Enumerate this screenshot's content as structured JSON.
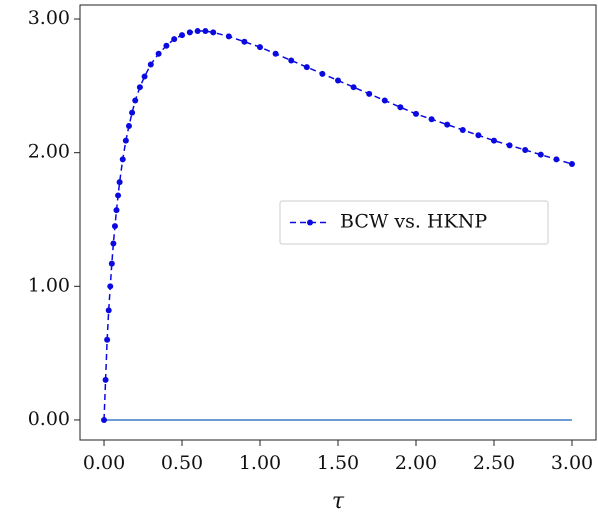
{
  "chart_data": {
    "type": "line",
    "xlabel": "τ",
    "x": [
      0,
      0.01,
      0.02,
      0.03,
      0.04,
      0.05,
      0.06,
      0.07,
      0.08,
      0.09,
      0.1,
      0.12,
      0.14,
      0.16,
      0.18,
      0.2,
      0.23,
      0.26,
      0.3,
      0.35,
      0.4,
      0.45,
      0.5,
      0.55,
      0.6,
      0.65,
      0.7,
      0.8,
      0.9,
      1.0,
      1.1,
      1.2,
      1.3,
      1.4,
      1.5,
      1.6,
      1.7,
      1.8,
      1.9,
      2.0,
      2.1,
      2.2,
      2.3,
      2.4,
      2.5,
      2.6,
      2.7,
      2.8,
      2.9,
      3.0
    ],
    "series": [
      {
        "name": "BCW vs. HKNP",
        "color": "#0a0ae0",
        "values": [
          0,
          0.3,
          0.6,
          0.82,
          1.0,
          1.17,
          1.32,
          1.45,
          1.57,
          1.68,
          1.78,
          1.95,
          2.09,
          2.2,
          2.3,
          2.39,
          2.49,
          2.57,
          2.66,
          2.74,
          2.8,
          2.85,
          2.88,
          2.9,
          2.91,
          2.91,
          2.9,
          2.87,
          2.83,
          2.79,
          2.74,
          2.69,
          2.64,
          2.59,
          2.54,
          2.49,
          2.44,
          2.39,
          2.34,
          2.29,
          2.25,
          2.21,
          2.17,
          2.13,
          2.09,
          2.055,
          2.02,
          1.985,
          1.95,
          1.915
        ]
      }
    ],
    "hline": {
      "y": 0,
      "xmin": 0,
      "xmax": 3,
      "color": "#3a7dc4"
    },
    "xlim": [
      -0.154,
      3.154
    ],
    "ylim": [
      -0.15,
      3.105
    ],
    "xticks": [
      {
        "value": 0,
        "label": "0.00"
      },
      {
        "value": 0.5,
        "label": "0.50"
      },
      {
        "value": 1,
        "label": "1.00"
      },
      {
        "value": 1.5,
        "label": "1.50"
      },
      {
        "value": 2,
        "label": "2.00"
      },
      {
        "value": 2.5,
        "label": "2.50"
      },
      {
        "value": 3,
        "label": "3.00"
      }
    ],
    "yticks": [
      {
        "value": 0,
        "label": "0.00"
      },
      {
        "value": 1,
        "label": "1.00"
      },
      {
        "value": 2,
        "label": "2.00"
      },
      {
        "value": 3,
        "label": "3.00"
      }
    ],
    "grid": false,
    "legend": "center right"
  }
}
